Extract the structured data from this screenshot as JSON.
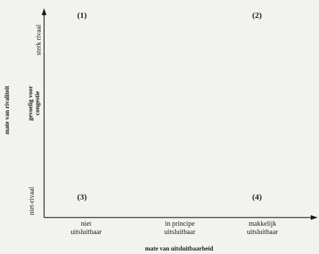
{
  "diagram": {
    "quadrants": [
      {
        "id": "q1",
        "label": "(1)"
      },
      {
        "id": "q2",
        "label": "(2)"
      },
      {
        "id": "q3",
        "label": "(3)"
      },
      {
        "id": "q4",
        "label": "(4)"
      }
    ],
    "x_axis": {
      "title": "mate van uitsluitbaarheid",
      "ticks": [
        {
          "line1": "niet",
          "line2": "uitsluitbaar"
        },
        {
          "line1": "in principe",
          "line2": "uitsluitbaar"
        },
        {
          "line1": "makkelijk",
          "line2": "uitsluitbaar"
        }
      ]
    },
    "y_axis": {
      "title": "mate van rivaliteit",
      "ticks": {
        "top": "sterk rivaal",
        "middle_line1": "gevoelig voor",
        "middle_line2": "congestie",
        "bottom": "niet-rivaal"
      }
    }
  }
}
